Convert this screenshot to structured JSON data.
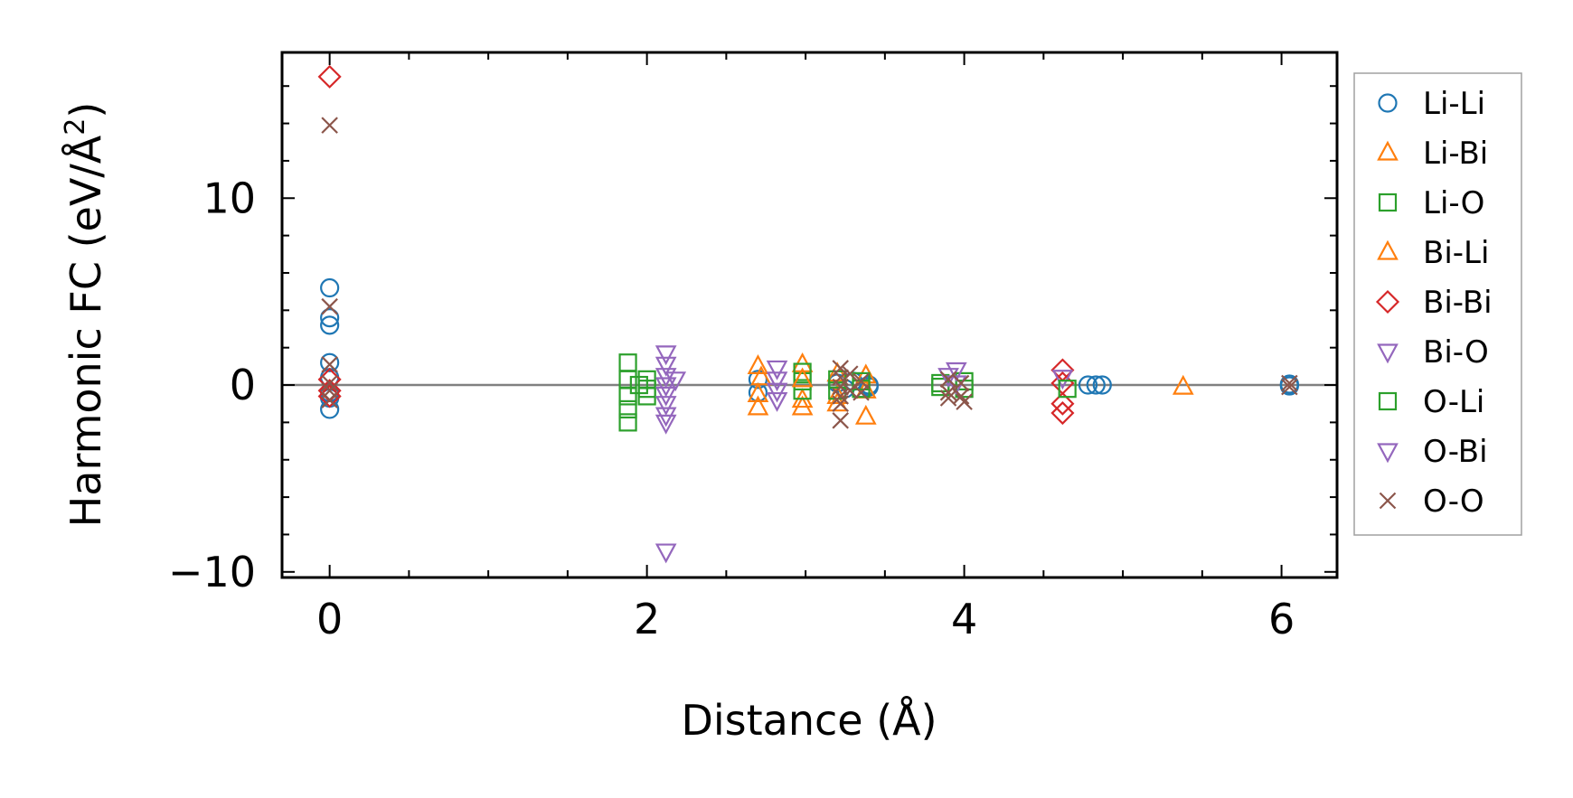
{
  "chart_data": {
    "type": "scatter",
    "xlabel": "Distance (Å)",
    "ylabel_main": "Harmonic FC (eV/Å",
    "ylabel_sup": "2",
    "ylabel_end": ")",
    "xlim": [
      -0.3,
      6.35
    ],
    "ylim": [
      -10.3,
      17.8
    ],
    "xticks": [
      0,
      2,
      4,
      6
    ],
    "xtick_labels": [
      "0",
      "2",
      "4",
      "6"
    ],
    "yticks": [
      -10,
      0,
      10
    ],
    "ytick_labels": [
      "−10",
      "0",
      "10"
    ],
    "xminor_step": 0.5,
    "yminor_step": 2,
    "zero_line": true,
    "grid": false,
    "legend_position": "right, outside plot",
    "series": [
      {
        "name": "Li-Li",
        "marker": "circle",
        "color": "#1f77b4",
        "points": [
          [
            0,
            5.2
          ],
          [
            0,
            3.6
          ],
          [
            0,
            3.2
          ],
          [
            0,
            1.2
          ],
          [
            0,
            0.4
          ],
          [
            0,
            -0.4
          ],
          [
            0,
            -0.7
          ],
          [
            0,
            -1.3
          ],
          [
            2.7,
            0.3
          ],
          [
            2.7,
            -0.4
          ],
          [
            3.2,
            0.1
          ],
          [
            3.25,
            -0.2
          ],
          [
            3.3,
            0.2
          ],
          [
            3.4,
            0
          ],
          [
            3.4,
            -0.1
          ],
          [
            4.78,
            0
          ],
          [
            4.83,
            0
          ],
          [
            4.87,
            0
          ],
          [
            6.05,
            0.05
          ],
          [
            6.05,
            -0.05
          ]
        ]
      },
      {
        "name": "Li-Bi",
        "marker": "triangle-up",
        "color": "#ff7f0e",
        "points": [
          [
            2.7,
            1.0
          ],
          [
            2.7,
            -0.5
          ],
          [
            2.7,
            -1.2
          ],
          [
            2.98,
            1.1
          ],
          [
            2.98,
            -0.8
          ],
          [
            2.98,
            -1.2
          ],
          [
            3.2,
            0.6
          ],
          [
            3.2,
            -0.6
          ],
          [
            3.2,
            -1.0
          ],
          [
            3.38,
            0.5
          ],
          [
            3.38,
            -0.3
          ],
          [
            3.38,
            -1.7
          ],
          [
            5.38,
            -0.1
          ]
        ]
      },
      {
        "name": "Li-O",
        "marker": "square",
        "color": "#2ca02c",
        "points": [
          [
            1.88,
            1.2
          ],
          [
            1.88,
            0.3
          ],
          [
            1.88,
            -0.6
          ],
          [
            1.88,
            -1.3
          ],
          [
            1.88,
            -2.0
          ],
          [
            2.0,
            0.3
          ],
          [
            2.0,
            -0.2
          ],
          [
            2.0,
            -0.6
          ],
          [
            2.98,
            0.7
          ],
          [
            2.98,
            0.2
          ],
          [
            2.98,
            -0.3
          ],
          [
            3.2,
            0.3
          ],
          [
            3.2,
            -0.3
          ],
          [
            3.35,
            0.2
          ],
          [
            3.35,
            -0.2
          ],
          [
            3.85,
            0.1
          ],
          [
            3.85,
            -0.1
          ],
          [
            4.0,
            0.2
          ],
          [
            4.0,
            -0.2
          ]
        ]
      },
      {
        "name": "Bi-Li",
        "marker": "triangle-up",
        "color": "#ff7f0e",
        "points": [
          [
            2.72,
            0.4
          ],
          [
            2.98,
            0.3
          ]
        ]
      },
      {
        "name": "Bi-Bi",
        "marker": "diamond",
        "color": "#d62728",
        "points": [
          [
            0,
            16.5
          ],
          [
            0,
            0.3
          ],
          [
            0,
            -0.3
          ],
          [
            0,
            -0.6
          ],
          [
            4.62,
            0.8
          ],
          [
            4.62,
            0.1
          ],
          [
            4.62,
            -1.0
          ],
          [
            4.62,
            -1.5
          ]
        ]
      },
      {
        "name": "Bi-O",
        "marker": "triangle-down",
        "color": "#9467bd",
        "points": [
          [
            2.12,
            1.7
          ],
          [
            2.12,
            1.1
          ],
          [
            2.12,
            0.5
          ],
          [
            2.12,
            0
          ],
          [
            2.12,
            -0.5
          ],
          [
            2.12,
            -1.0
          ],
          [
            2.12,
            -1.6
          ],
          [
            2.12,
            -2.0
          ],
          [
            2.12,
            -8.9
          ],
          [
            2.82,
            0.9
          ],
          [
            2.82,
            0.3
          ],
          [
            2.82,
            -0.3
          ],
          [
            2.82,
            -0.8
          ],
          [
            3.95,
            0.8
          ],
          [
            3.95,
            0.1
          ],
          [
            4.62,
            0.4
          ]
        ]
      },
      {
        "name": "O-Li",
        "marker": "square",
        "color": "#2ca02c",
        "points": [
          [
            1.95,
            0
          ],
          [
            4.65,
            -0.2
          ]
        ]
      },
      {
        "name": "O-Bi",
        "marker": "triangle-down",
        "color": "#9467bd",
        "points": [
          [
            2.18,
            0.3
          ],
          [
            3.9,
            0.5
          ]
        ]
      },
      {
        "name": "O-O",
        "marker": "x",
        "color": "#8c564b",
        "points": [
          [
            0,
            13.9
          ],
          [
            0,
            4.2
          ],
          [
            0,
            1.1
          ],
          [
            0,
            0.1
          ],
          [
            0,
            -0.3
          ],
          [
            0,
            -0.8
          ],
          [
            3.22,
            0.9
          ],
          [
            3.22,
            0.4
          ],
          [
            3.22,
            -0.1
          ],
          [
            3.22,
            -0.6
          ],
          [
            3.22,
            -1.0
          ],
          [
            3.22,
            -1.9
          ],
          [
            3.28,
            0.6
          ],
          [
            3.28,
            -0.3
          ],
          [
            3.35,
            0.2
          ],
          [
            3.35,
            -0.4
          ],
          [
            3.9,
            0.3
          ],
          [
            3.9,
            -0.4
          ],
          [
            3.9,
            -0.7
          ],
          [
            3.98,
            0.1
          ],
          [
            3.98,
            -0.6
          ],
          [
            4.0,
            -0.9
          ],
          [
            6.05,
            0.1
          ],
          [
            6.05,
            -0.1
          ]
        ]
      }
    ]
  }
}
